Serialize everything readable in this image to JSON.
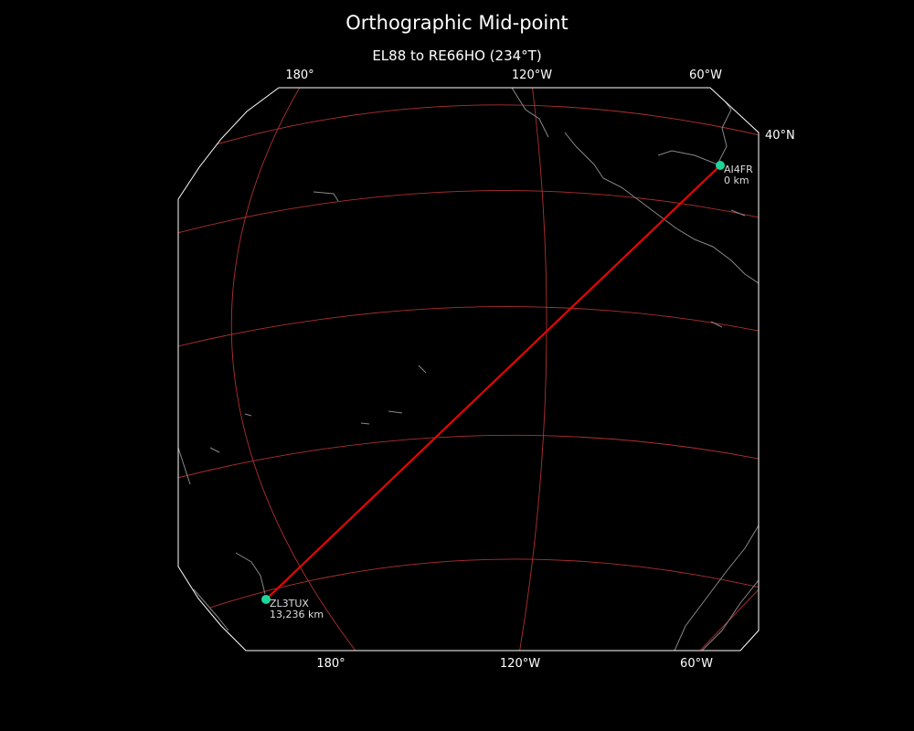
{
  "title": "Orthographic Mid-point",
  "subtitle": "EL88 to RE66HO (234°T)",
  "top_lon_labels": [
    "180°",
    "120°W",
    "60°W"
  ],
  "bottom_lon_labels": [
    "180°",
    "120°W",
    "60°W"
  ],
  "lat_labels": [
    "40°N"
  ],
  "stations": [
    {
      "call": "AI4FR",
      "distance": "0 km"
    },
    {
      "call": "ZL3TUX",
      "distance": "13,236 km"
    }
  ],
  "colors": {
    "background": "#000000",
    "path": "#ff0000",
    "graticule": "#b03030",
    "coastline": "#888888",
    "station": "#1ed69a",
    "border": "#ffffff"
  }
}
